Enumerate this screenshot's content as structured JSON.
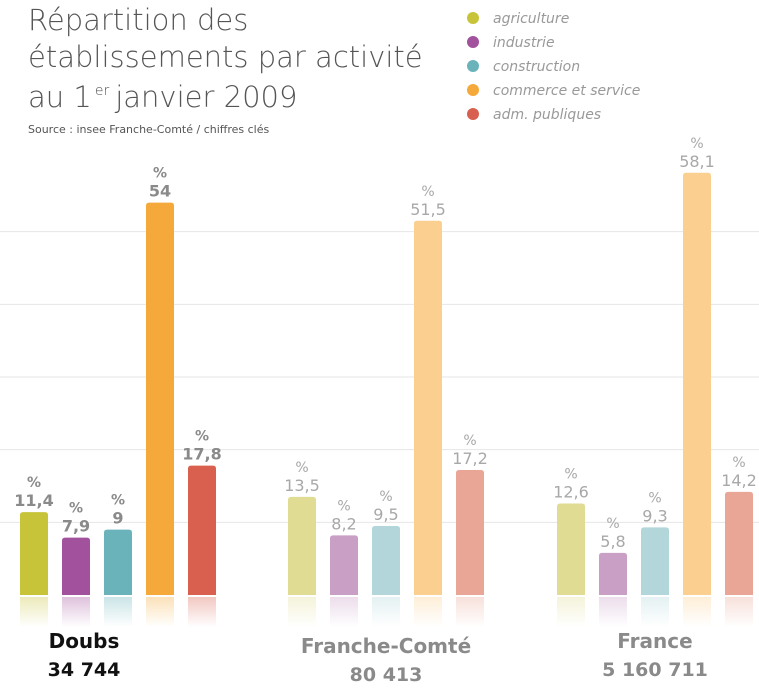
{
  "chart_data": {
    "type": "bar",
    "title": [
      "Répartition des",
      "établissements par activité",
      "au 1",
      "er",
      "janvier 2009"
    ],
    "subtitle": "Source : insee Franche-Comté / chiffres clés",
    "value_unit": "%",
    "categories": [
      "Doubs",
      "Franche-Comté",
      "France"
    ],
    "category_sublabels": [
      "34 744",
      "80 413",
      "5 160 711"
    ],
    "series": [
      {
        "name": "agriculture",
        "color": "#c8c43a",
        "colors": [
          "#c8c43a",
          "#e0dc94",
          "#e0dc94"
        ],
        "values": [
          11.4,
          13.5,
          12.6
        ],
        "value_labels": [
          "11,4",
          "13,5",
          "12,6"
        ]
      },
      {
        "name": "industrie",
        "color": "#a2519c",
        "colors": [
          "#a2519c",
          "#c99fc6",
          "#c99fc6"
        ],
        "values": [
          7.9,
          8.2,
          5.8
        ],
        "value_labels": [
          "7,9",
          "8,2",
          "5,8"
        ]
      },
      {
        "name": "construction",
        "color": "#6ab3bb",
        "colors": [
          "#6ab3bb",
          "#b2d6da",
          "#b2d6da"
        ],
        "values": [
          9,
          9.5,
          9.3
        ],
        "value_labels": [
          "9",
          "9,5",
          "9,3"
        ]
      },
      {
        "name": "commerce et service",
        "color": "#f5a93a",
        "colors": [
          "#f5a93a",
          "#fbcf8f",
          "#fbcf8f"
        ],
        "values": [
          54,
          51.5,
          58.1
        ],
        "value_labels": [
          "54",
          "51,5",
          "58,1"
        ]
      },
      {
        "name": "adm. publiques",
        "color": "#d9604f",
        "colors": [
          "#d9604f",
          "#e9a697",
          "#e9a697"
        ],
        "values": [
          17.8,
          17.2,
          14.2
        ],
        "value_labels": [
          "17,8",
          "17,2",
          "14,2"
        ]
      }
    ],
    "ylim": [
      0,
      60
    ],
    "yticks": [
      10,
      20,
      30,
      40,
      50
    ],
    "grid": true
  }
}
